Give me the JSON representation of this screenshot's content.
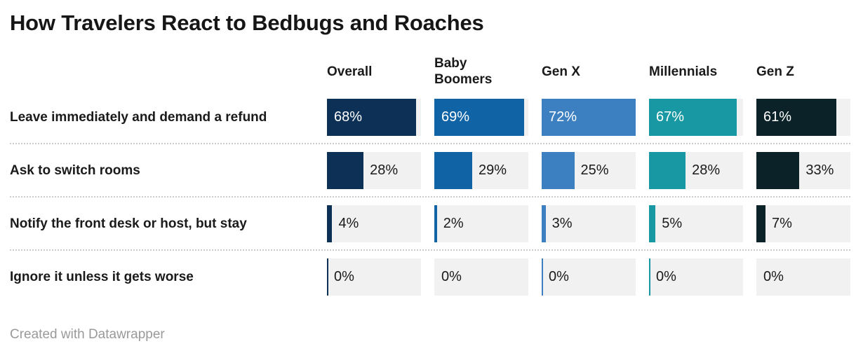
{
  "header": {
    "title": "How Travelers React to Bedbugs and Roaches"
  },
  "footer": {
    "credit": "Created with Datawrapper"
  },
  "colors": {
    "title_text": "#161616",
    "header_text": "#1a1a1a",
    "row_label_text": "#1a1a1a",
    "value_text_inside": "#ffffff",
    "value_text_outside": "#1a1a1a",
    "bar_track": "#f1f1f1",
    "separator": "#cccccc",
    "footer_text": "#9a9a9a"
  },
  "chart_data": {
    "type": "bar",
    "orientation": "horizontal",
    "title": "How Travelers React to Bedbugs and Roaches",
    "value_suffix": "%",
    "scale_max": 72,
    "grid": false,
    "legend_position": "column-headers",
    "categories": [
      "Leave immediately and demand a refund",
      "Ask to switch rooms",
      "Notify the front desk or host, but stay",
      "Ignore it unless it gets worse"
    ],
    "series": [
      {
        "name": "Overall",
        "color": "#0d3057",
        "values": [
          68,
          28,
          4,
          0
        ]
      },
      {
        "name": "Baby Boomers",
        "color": "#1063a4",
        "values": [
          69,
          29,
          2,
          0
        ]
      },
      {
        "name": "Gen X",
        "color": "#3d80c2",
        "values": [
          72,
          25,
          3,
          0
        ]
      },
      {
        "name": "Millennials",
        "color": "#1898a2",
        "values": [
          67,
          28,
          5,
          0
        ]
      },
      {
        "name": "Gen Z",
        "color": "#0b2328",
        "values": [
          61,
          33,
          7,
          0
        ]
      }
    ],
    "zero_hairline": [
      true,
      false,
      true,
      true,
      false
    ],
    "inside_label_threshold": 50
  }
}
